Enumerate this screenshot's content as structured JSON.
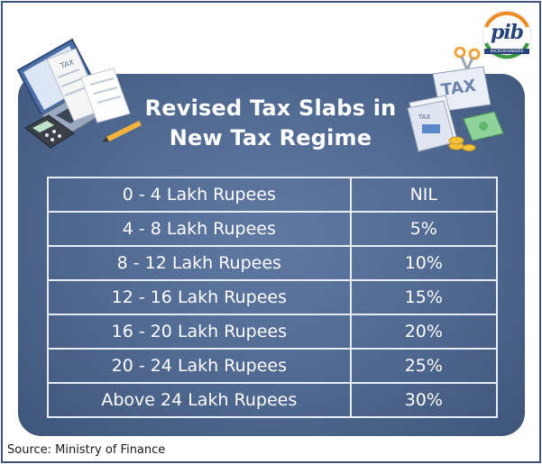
{
  "title_line1": "Revised Tax Slabs in",
  "title_line2": "New Tax Regime",
  "logo": {
    "text": "pib",
    "subtext": "BACKGROUNDERS"
  },
  "illustration_left": {
    "label": "TAX"
  },
  "illustration_right": {
    "label": "TAX",
    "doc_label": "TAX"
  },
  "slabs": [
    {
      "range": "0 - 4 Lakh Rupees",
      "rate": "NIL"
    },
    {
      "range": "4 - 8 Lakh Rupees",
      "rate": "5%"
    },
    {
      "range": "8 - 12 Lakh Rupees",
      "rate": "10%"
    },
    {
      "range": "12 - 16 Lakh Rupees",
      "rate": "15%"
    },
    {
      "range": "16 - 20 Lakh Rupees",
      "rate": "20%"
    },
    {
      "range": "20 - 24 Lakh Rupees",
      "rate": "25%"
    },
    {
      "range": "Above 24 Lakh Rupees",
      "rate": "30%"
    }
  ],
  "source": "Source: Ministry of Finance",
  "colors": {
    "card": "#4f6890",
    "border": "#3d5478",
    "table_line": "#e8edf5",
    "logo_blue": "#27457a"
  }
}
